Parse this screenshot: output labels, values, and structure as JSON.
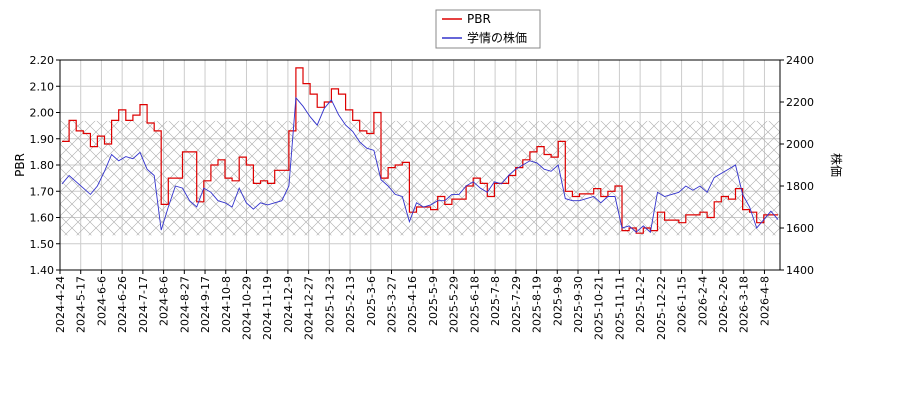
{
  "chart_data": {
    "type": "line",
    "title": "",
    "xlabel": "",
    "ylabel_left": "PBR",
    "ylabel_right": "株価",
    "ylim_left": [
      1.4,
      2.2
    ],
    "ylim_right": [
      1400,
      2400
    ],
    "yticks_left": [
      "1.40",
      "1.50",
      "1.60",
      "1.70",
      "1.80",
      "1.90",
      "2.00",
      "2.10",
      "2.20"
    ],
    "yticks_right": [
      "1400",
      "1600",
      "1800",
      "2000",
      "2200",
      "2400"
    ],
    "xticks": [
      "2024-4-24",
      "2024-5-17",
      "2024-6-6",
      "2024-6-26",
      "2024-7-17",
      "2024-8-6",
      "2024-8-27",
      "2024-9-17",
      "2024-10-8",
      "2024-10-29",
      "2024-11-19",
      "2024-12-9",
      "2024-12-27",
      "2025-1-23",
      "2025-2-13",
      "2025-3-6",
      "2025-3-27",
      "2025-4-16",
      "2025-5-9",
      "2025-5-29",
      "2025-6-18",
      "2025-7-8",
      "2025-7-29",
      "2025-8-19",
      "2025-9-8",
      "2025-9-30",
      "2025-10-21",
      "2025-11-11",
      "2025-12-2",
      "2025-12-22",
      "2026-1-15",
      "2026-2-4",
      "2026-2-26",
      "2026-3-18",
      "2026-4-8"
    ],
    "grid": true,
    "legend_position": "top-center",
    "band_right_axis": [
      1565,
      2110
    ],
    "series": [
      {
        "name": "PBR",
        "axis": "left",
        "color": "#dd0000",
        "values": [
          1.89,
          1.97,
          1.93,
          1.92,
          1.87,
          1.91,
          1.88,
          1.97,
          2.01,
          1.97,
          1.99,
          2.03,
          1.96,
          1.93,
          1.65,
          1.75,
          1.75,
          1.85,
          1.85,
          1.66,
          1.74,
          1.8,
          1.82,
          1.75,
          1.74,
          1.83,
          1.8,
          1.73,
          1.74,
          1.73,
          1.78,
          1.78,
          1.93,
          2.17,
          2.11,
          2.07,
          2.02,
          2.04,
          2.09,
          2.07,
          2.01,
          1.97,
          1.93,
          1.92,
          2.0,
          1.75,
          1.79,
          1.8,
          1.81,
          1.62,
          1.64,
          1.64,
          1.63,
          1.68,
          1.65,
          1.67,
          1.67,
          1.72,
          1.75,
          1.73,
          1.68,
          1.73,
          1.73,
          1.76,
          1.79,
          1.82,
          1.85,
          1.87,
          1.84,
          1.83,
          1.89,
          1.7,
          1.68,
          1.69,
          1.69,
          1.71,
          1.68,
          1.7,
          1.72,
          1.55,
          1.56,
          1.54,
          1.56,
          1.55,
          1.62,
          1.59,
          1.59,
          1.58,
          1.61,
          1.61,
          1.62,
          1.6,
          1.66,
          1.68,
          1.67,
          1.71,
          1.63,
          1.62,
          1.58,
          1.61,
          1.61,
          1.61
        ]
      },
      {
        "name": "学情の株価",
        "axis": "right",
        "color": "#3333cc",
        "values": [
          1810,
          1850,
          1820,
          1790,
          1760,
          1800,
          1870,
          1950,
          1920,
          1940,
          1930,
          1960,
          1880,
          1850,
          1590,
          1700,
          1800,
          1790,
          1730,
          1700,
          1790,
          1770,
          1730,
          1720,
          1700,
          1790,
          1720,
          1690,
          1720,
          1710,
          1720,
          1730,
          1800,
          2220,
          2180,
          2130,
          2090,
          2170,
          2210,
          2140,
          2090,
          2060,
          2010,
          1980,
          1970,
          1830,
          1800,
          1760,
          1750,
          1630,
          1720,
          1700,
          1710,
          1730,
          1730,
          1760,
          1760,
          1800,
          1820,
          1790,
          1770,
          1820,
          1810,
          1850,
          1880,
          1900,
          1920,
          1910,
          1880,
          1870,
          1900,
          1740,
          1730,
          1730,
          1740,
          1750,
          1720,
          1750,
          1750,
          1600,
          1610,
          1580,
          1610,
          1580,
          1770,
          1750,
          1760,
          1770,
          1800,
          1780,
          1800,
          1770,
          1840,
          1860,
          1880,
          1900,
          1760,
          1700,
          1600,
          1640,
          1680,
          1640
        ]
      }
    ]
  }
}
